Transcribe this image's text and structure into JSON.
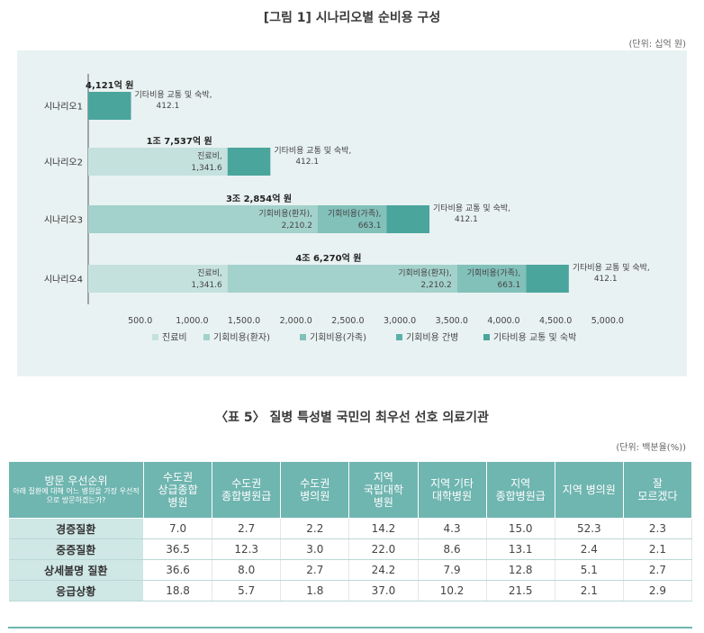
{
  "figure": {
    "title": "[그림 1] 시나리오별 순비용 구성",
    "unit": "(단위: 십억 원)"
  },
  "chart_data": {
    "type": "bar",
    "orientation": "horizontal",
    "stacked": true,
    "categories": [
      "시나리오1",
      "시나리오2",
      "시나리오3",
      "시나리오4"
    ],
    "series": [
      {
        "name": "진료비",
        "color": "#c4e1de",
        "values": [
          0,
          1341.6,
          0,
          1341.6
        ]
      },
      {
        "name": "기회비용(환자)",
        "color": "#a3d1cc",
        "values": [
          0,
          0,
          2210.2,
          2210.2
        ]
      },
      {
        "name": "기회비용(가족)",
        "color": "#82c0ba",
        "values": [
          0,
          0,
          663.1,
          663.1
        ]
      },
      {
        "name": "기회비용 간병",
        "color": "#5bb0a9",
        "values": [
          0,
          0,
          0,
          0
        ]
      },
      {
        "name": "기타비용 교통 및 숙박",
        "color": "#4aa59d",
        "values": [
          412.1,
          412.1,
          412.1,
          412.1
        ]
      }
    ],
    "segment_labels": [
      [
        null,
        null,
        null,
        null,
        {
          "label": "기타비용 교통 및 숙박,",
          "value": "412.1"
        }
      ],
      [
        {
          "label": "진료비,",
          "value": "1,341.6"
        },
        null,
        null,
        null,
        {
          "label": "기타비용 교통 및 숙박,",
          "value": "412.1"
        }
      ],
      [
        null,
        {
          "label": "기회비용(환자),",
          "value": "2,210.2"
        },
        {
          "label": "기회비용(가족),",
          "value": "663.1"
        },
        null,
        {
          "label": "기타비용 교통 및 숙박,",
          "value": "412.1"
        }
      ],
      [
        {
          "label": "진료비,",
          "value": "1,341.6"
        },
        {
          "label": "기회비용(환자),",
          "value": "2,210.2"
        },
        {
          "label": "기회비용(가족),",
          "value": "663.1"
        },
        null,
        {
          "label": "기타비용 교통 및 숙박,",
          "value": "412.1"
        }
      ]
    ],
    "totals": [
      "4,121억 원",
      "1조 7,537억 원",
      "3조 2,854억 원",
      "4조 6,270억 원"
    ],
    "xticks": [
      "500.0",
      "1,000.0",
      "1,500.0",
      "2,000.0",
      "2,500.0",
      "3,000.0",
      "3,500.0",
      "4,000.0",
      "4,500.0",
      "5,000.0"
    ],
    "xtick_values": [
      500,
      1000,
      1500,
      2000,
      2500,
      3000,
      3500,
      4000,
      4500,
      5000
    ],
    "xlim": [
      0,
      5400
    ],
    "legend_position": "bottom"
  },
  "table": {
    "title": "〈표 5〉 질병 특성별 국민의 최우선 선호 의료기관",
    "unit": "(단위: 백분율(%))",
    "corner_label": "방문 우선순위",
    "corner_sub": "아래 질환에 대해 어느 병원을 가장 우선적으로 방문하겠는가?",
    "columns": [
      [
        "수도권",
        "상급종합",
        "병원"
      ],
      [
        "수도권",
        "종합병원급"
      ],
      [
        "수도권",
        "병의원"
      ],
      [
        "지역",
        "국립대학",
        "병원"
      ],
      [
        "지역 기타",
        "대학병원"
      ],
      [
        "지역",
        "종합병원급"
      ],
      [
        "지역 병의원"
      ],
      [
        "잘",
        "모르겠다"
      ]
    ],
    "rows": [
      {
        "label": "경증질환",
        "values": [
          "7.0",
          "2.7",
          "2.2",
          "14.2",
          "4.3",
          "15.0",
          "52.3",
          "2.3"
        ]
      },
      {
        "label": "중증질환",
        "values": [
          "36.5",
          "12.3",
          "3.0",
          "22.0",
          "8.6",
          "13.1",
          "2.4",
          "2.1"
        ]
      },
      {
        "label": "상세불명 질환",
        "values": [
          "36.6",
          "8.0",
          "2.7",
          "24.2",
          "7.9",
          "12.8",
          "5.1",
          "2.7"
        ]
      },
      {
        "label": "응급상황",
        "values": [
          "18.8",
          "5.7",
          "1.8",
          "37.0",
          "10.2",
          "21.5",
          "2.1",
          "2.9"
        ]
      }
    ]
  }
}
